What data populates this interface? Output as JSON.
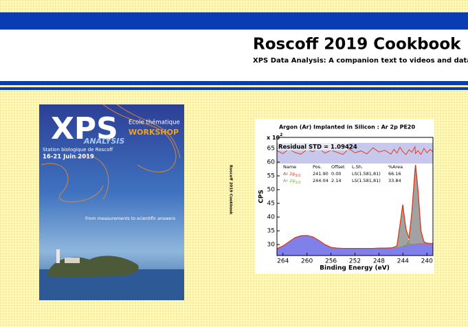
{
  "header": {
    "title": "Roscoff 2019 Cookbook",
    "subtitle": "XPS Data Analysis: A companion text to videos and data"
  },
  "poster": {
    "title": "XPS",
    "subtitle": "ANALYSIS",
    "event": "Ecole thématique",
    "kind": "WORKSHOP",
    "venue": "Station biologique de Roscoff",
    "dates": "16-21 Juin 2019",
    "tagline": "From measurements to scientific answers"
  },
  "spine": "Roscoff 2019 Cookbook",
  "chart_data": {
    "type": "line",
    "title": "Argon (Ar) Implanted in Silicon : Ar 2p PE20",
    "y_multiplier": {
      "text": "x 10",
      "exp": "2"
    },
    "ylabel": "CPS",
    "xlabel": "Binding Energy (eV)",
    "residual_label": "Residual STD = 1.09424",
    "table_headers": [
      "Name",
      "Pos.",
      "Offset",
      "L.Sh.",
      "%Area"
    ],
    "xlim": [
      265,
      239
    ],
    "ylim": [
      26,
      69
    ],
    "xticks": [
      264,
      260,
      256,
      252,
      248,
      244,
      240
    ],
    "yticks": [
      30,
      35,
      40,
      45,
      50,
      55,
      60,
      65
    ],
    "x": [
      265,
      264,
      263,
      262,
      261,
      260,
      259,
      258,
      257,
      256,
      255,
      254,
      253,
      252,
      251,
      250,
      249,
      248,
      247,
      246,
      245.5,
      245,
      244.5,
      244.04,
      243.5,
      243,
      242.5,
      242,
      241.9,
      241.5,
      241,
      240.5,
      240,
      239.5,
      239
    ],
    "background": {
      "color": "#6a6ae8",
      "values": [
        28.5,
        29.5,
        31,
        32.5,
        33.2,
        33.3,
        32.8,
        31.5,
        30,
        29,
        28.7,
        28.6,
        28.6,
        28.6,
        28.6,
        28.6,
        28.6,
        28.7,
        28.7,
        28.8,
        28.9,
        29,
        29.2,
        29.4,
        29.6,
        29.8,
        30,
        30.2,
        30.2,
        30.3,
        30.4,
        30.4,
        30.4,
        30.4,
        30.4
      ]
    },
    "envelope": {
      "color": "#d83a1a",
      "values": [
        28.5,
        29.5,
        31,
        32.5,
        33.2,
        33.3,
        32.8,
        31.5,
        30,
        29,
        28.7,
        28.6,
        28.6,
        28.6,
        28.6,
        28.6,
        28.6,
        28.7,
        28.7,
        28.8,
        29,
        29.5,
        37,
        44.5,
        35.7,
        32.2,
        42.1,
        57,
        59,
        50,
        35,
        31,
        30.5,
        30.4,
        30.4
      ]
    },
    "residual": {
      "color": "#e04020",
      "values": [
        64.2,
        63.1,
        64.8,
        63.5,
        62.9,
        64.6,
        63.8,
        65.1,
        63.2,
        64.4,
        63.6,
        62.8,
        64.9,
        63.4,
        64.1,
        63,
        65.2,
        63.7,
        64.3,
        62.9,
        64.7,
        63.3,
        65.4,
        63.9,
        62.7,
        64.5,
        63.6,
        65.6,
        63.1,
        64.2,
        62.8,
        65,
        63.4,
        64.6,
        63.8
      ]
    },
    "series": [
      {
        "name": "Ar 2p",
        "sub": "3/2",
        "color": "#d83a1a",
        "pos": "241.90",
        "offset": "0.00",
        "lsh": "LS(1.581,81)",
        "area": "66.16",
        "values": [
          null,
          null,
          null,
          null,
          null,
          null,
          null,
          null,
          null,
          null,
          null,
          null,
          null,
          null,
          null,
          null,
          null,
          null,
          null,
          null,
          null,
          null,
          null,
          29.5,
          29.8,
          31.5,
          42,
          57,
          59,
          50,
          35,
          31,
          30.5,
          30.4,
          30.4
        ]
      },
      {
        "name": "Ar 2p",
        "sub": "1/2",
        "color": "#6aa83a",
        "pos": "244.04",
        "offset": "2.14",
        "lsh": "LS(1.581,81)",
        "area": "33.84",
        "values": [
          null,
          null,
          null,
          null,
          null,
          null,
          null,
          null,
          null,
          null,
          null,
          null,
          null,
          null,
          null,
          null,
          null,
          null,
          null,
          null,
          29,
          29.5,
          37,
          44.5,
          35.5,
          30.5,
          30.1,
          null,
          null,
          null,
          null,
          null,
          null,
          null,
          null
        ]
      }
    ]
  }
}
